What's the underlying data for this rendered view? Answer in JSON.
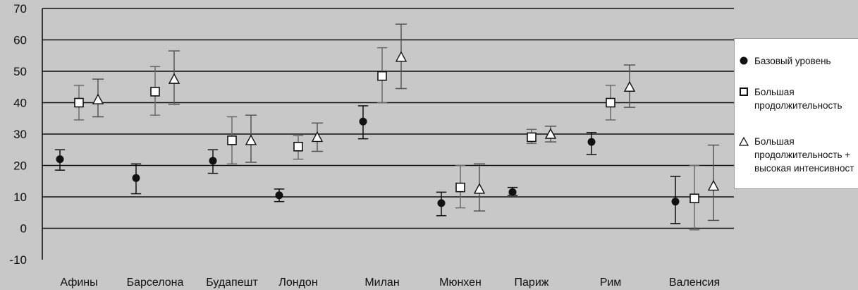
{
  "chart_data": {
    "type": "scatter",
    "categories": [
      "Афины",
      "Барселона",
      "Будапешт",
      "Лондон",
      "Милан",
      "Мюнхен",
      "Париж",
      "Рим",
      "Валенсия"
    ],
    "ylim": [
      -10,
      70
    ],
    "yticks": [
      -10,
      0,
      10,
      20,
      30,
      40,
      50,
      60,
      70
    ],
    "grid": "horizontal",
    "legend_position": "right",
    "series": [
      {
        "name": "Базовый уровень",
        "marker": "filled-circle",
        "color": "#111111",
        "values": [
          22,
          16,
          21.5,
          10.5,
          34,
          8,
          11.5,
          27.5,
          8.5
        ],
        "lower": [
          18.5,
          11,
          17.5,
          8.5,
          28.5,
          4,
          10.5,
          23.5,
          1.5
        ],
        "upper": [
          25,
          20.5,
          25,
          12.5,
          39,
          11.5,
          13,
          30.5,
          16.5
        ]
      },
      {
        "name": "Большая продолжительность",
        "marker": "open-square",
        "color": "#111111",
        "values": [
          40,
          43.5,
          28,
          26,
          48.5,
          13,
          29,
          40,
          9.5
        ],
        "lower": [
          34.5,
          36,
          20.5,
          22,
          40,
          6.5,
          27,
          34.5,
          -0.5
        ],
        "upper": [
          45.5,
          51.5,
          35.5,
          29.5,
          57.5,
          20,
          31.5,
          45.5,
          20
        ]
      },
      {
        "name": "Большая продолжительность + высокая интенсивность",
        "marker": "open-triangle",
        "color": "#111111",
        "values": [
          41,
          47.5,
          28,
          29,
          54.5,
          12.5,
          30,
          45,
          13.5
        ],
        "lower": [
          35.5,
          39.5,
          21,
          24.5,
          44.5,
          5.5,
          27.5,
          38.5,
          2.5
        ],
        "upper": [
          47.5,
          56.5,
          36,
          33.5,
          65,
          20.5,
          32.5,
          52,
          26.5
        ]
      }
    ]
  },
  "legend": {
    "items": [
      {
        "lines": [
          "Базовый уровень"
        ]
      },
      {
        "lines": [
          "Большая",
          "продолжительность"
        ]
      },
      {
        "lines": [
          "Большая",
          "продолжительность +",
          "высокая интенсивност"
        ]
      }
    ]
  }
}
